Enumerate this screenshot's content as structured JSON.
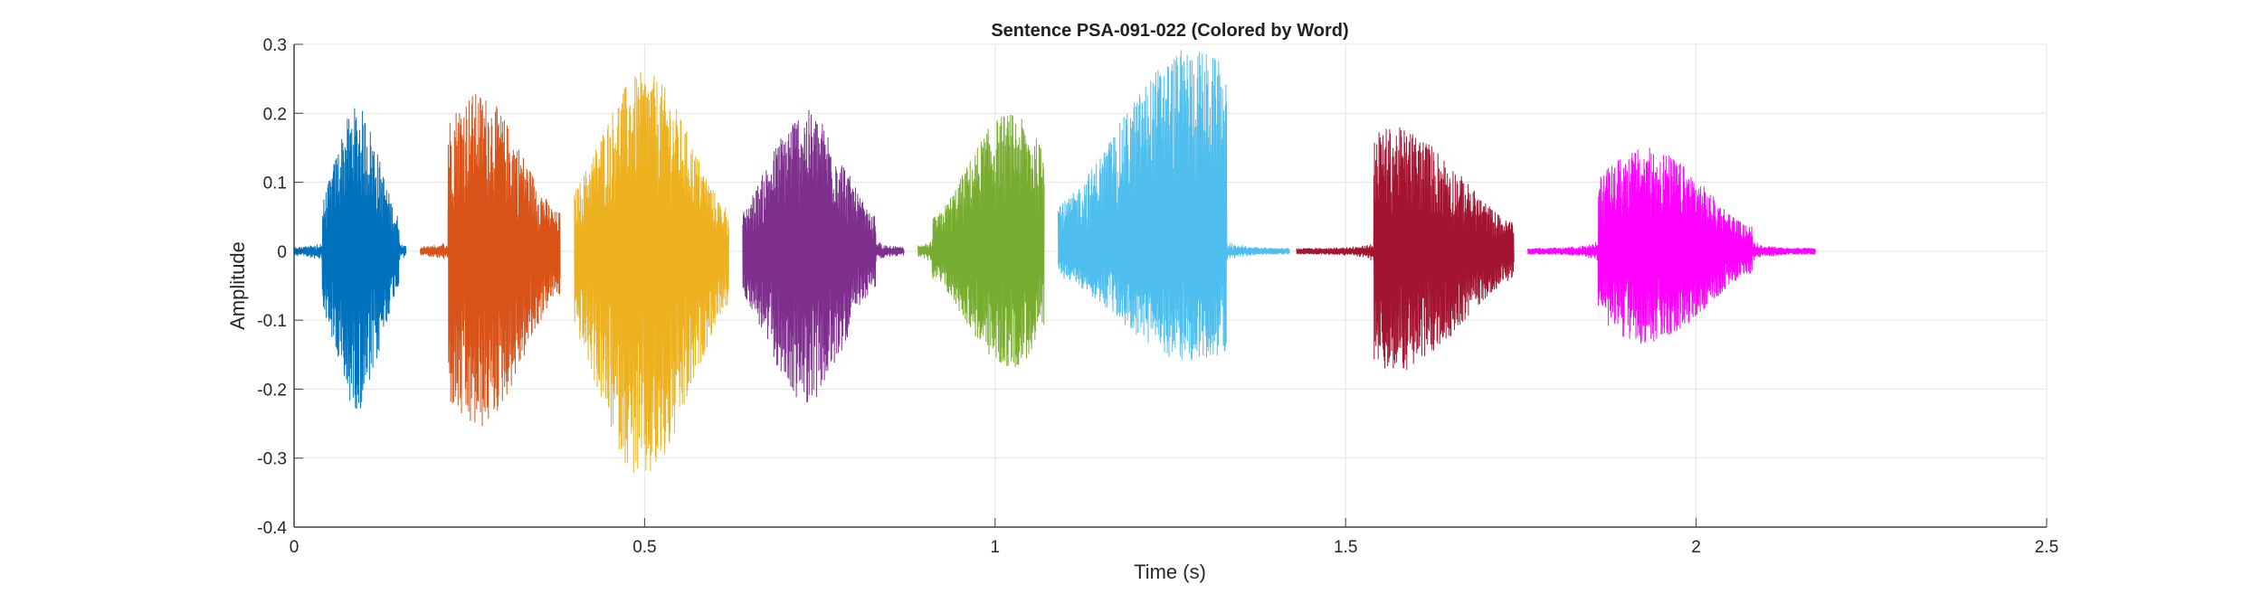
{
  "chart_data": {
    "type": "line",
    "title": "Sentence PSA-091-022 (Colored by Word)",
    "xlabel": "Time (s)",
    "ylabel": "Amplitude",
    "xlim": [
      0,
      2.5
    ],
    "ylim": [
      -0.4,
      0.3
    ],
    "xticks": [
      "0",
      "0.5",
      "1",
      "1.5",
      "2",
      "2.5"
    ],
    "xtick_values": [
      0,
      0.5,
      1,
      1.5,
      2,
      2.5
    ],
    "yticks": [
      "-0.4",
      "-0.3",
      "-0.2",
      "-0.1",
      "0",
      "0.1",
      "0.2",
      "0.3"
    ],
    "ytick_values": [
      -0.4,
      -0.3,
      -0.2,
      -0.1,
      0,
      0.1,
      0.2,
      0.3
    ],
    "grid": true,
    "legend": "none",
    "series": [
      {
        "color": "#0072BD",
        "t_start": 0.0,
        "t_end": 0.16,
        "voiced": [
          0.04,
          0.15
        ],
        "peak_time": 0.09,
        "max": 0.21,
        "min": -0.23
      },
      {
        "color": "#D95319",
        "t_start": 0.18,
        "t_end": 0.38,
        "voiced": [
          0.22,
          0.38
        ],
        "peak_time": 0.26,
        "max": 0.23,
        "min": -0.26
      },
      {
        "color": "#EDB120",
        "t_start": 0.4,
        "t_end": 0.62,
        "voiced": [
          0.4,
          0.62
        ],
        "peak_time": 0.5,
        "max": 0.26,
        "min": -0.335
      },
      {
        "color": "#7E2F8E",
        "t_start": 0.64,
        "t_end": 0.87,
        "voiced": [
          0.64,
          0.83
        ],
        "peak_time": 0.73,
        "max": 0.205,
        "min": -0.22
      },
      {
        "color": "#77AC30",
        "t_start": 0.89,
        "t_end": 1.07,
        "voiced": [
          0.91,
          1.07
        ],
        "peak_time": 1.02,
        "max": 0.2,
        "min": -0.17
      },
      {
        "color": "#4DBEEE",
        "t_start": 1.09,
        "t_end": 1.42,
        "voiced": [
          1.09,
          1.33
        ],
        "peak_time": 1.28,
        "max": 0.295,
        "min": -0.16
      },
      {
        "color": "#A2142F",
        "t_start": 1.43,
        "t_end": 1.74,
        "voiced": [
          1.54,
          1.74
        ],
        "peak_time": 1.57,
        "max": 0.18,
        "min": -0.175
      },
      {
        "color": "#FF00FF",
        "t_start": 1.76,
        "t_end": 2.17,
        "voiced": [
          1.86,
          2.08
        ],
        "peak_time": 1.93,
        "max": 0.15,
        "min": -0.135
      }
    ]
  }
}
